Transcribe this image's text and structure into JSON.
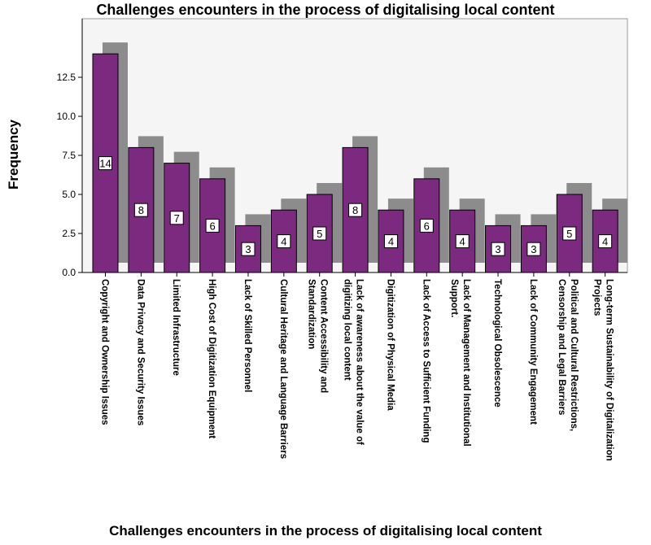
{
  "chart_data": {
    "type": "bar",
    "title": "Challenges encounters in the process of digitalising local content",
    "xlabel": "Challenges encounters in the process of digitalising local content",
    "ylabel": "Frequency",
    "ylim": [
      0,
      15
    ],
    "yticks": [
      "0.0",
      "2.5",
      "5.0",
      "7.5",
      "10.0",
      "12.5"
    ],
    "grid": false,
    "bar_color": "#7b2a7f",
    "shadow_color": "#8c8c8c",
    "plot_background": "#f5f5f5",
    "categories": [
      [
        "Copyright and Ownership Issues"
      ],
      [
        "Data Privacy and Security Issues"
      ],
      [
        "Limited Infrastructure"
      ],
      [
        "High Cost of Digitization Equipment"
      ],
      [
        "Lack of Skilled Personnel"
      ],
      [
        "Cultural Heritage and Language Barriers"
      ],
      [
        "Content Accessibility and",
        "Standardization"
      ],
      [
        "Lack of awareness about the value of",
        "digitizing local content"
      ],
      [
        "Digitization of Physical Media"
      ],
      [
        "Lack of Access to Sufficient Funding"
      ],
      [
        "Lack of Management and Institutional",
        "Support."
      ],
      [
        "Technological Obsolescence"
      ],
      [
        "Lack of Community Engagement"
      ],
      [
        "Political and Cultural Restrictions,",
        "Censorship and Legal Barriers"
      ],
      [
        "Long-term Sustainability of Digitalization",
        "Projects"
      ]
    ],
    "values": [
      14,
      8,
      7,
      6,
      3,
      4,
      5,
      8,
      4,
      6,
      4,
      3,
      3,
      5,
      4
    ]
  }
}
